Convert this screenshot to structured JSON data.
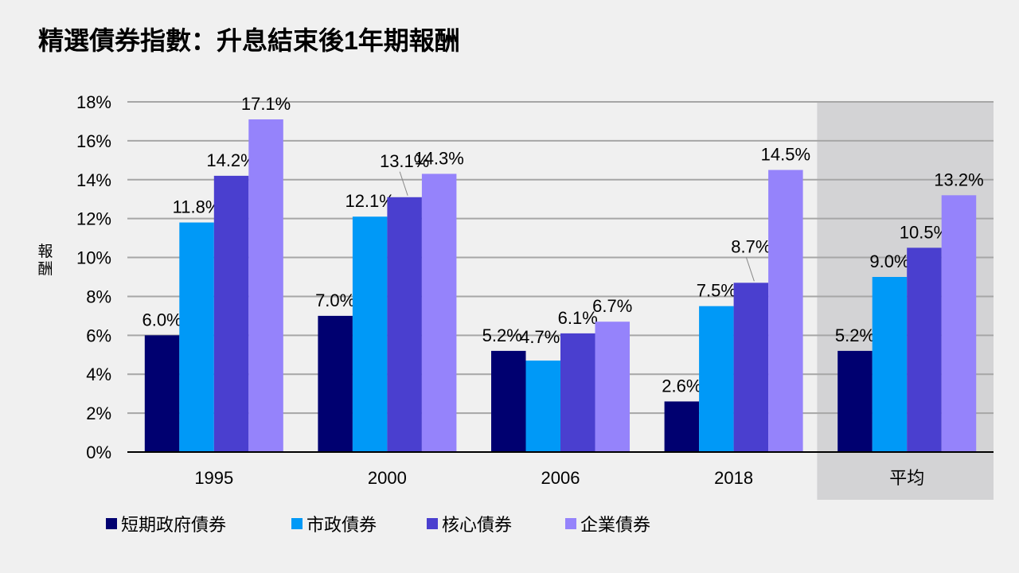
{
  "chart_data": {
    "type": "bar",
    "title": "精選債券指數：升息結束後1年期報酬",
    "ylabel": "報酬",
    "xlabel": "",
    "ylim": [
      0,
      18
    ],
    "yticks": [
      "0%",
      "2%",
      "4%",
      "6%",
      "8%",
      "10%",
      "12%",
      "14%",
      "16%",
      "18%"
    ],
    "grid": true,
    "legend_position": "bottom",
    "categories": [
      "1995",
      "2000",
      "2006",
      "2018",
      "平均"
    ],
    "highlighted_category": "平均",
    "series": [
      {
        "name": "短期政府債券",
        "color": "#000070",
        "values": [
          6.0,
          7.0,
          5.2,
          2.6,
          5.2
        ],
        "labels": [
          "6.0%",
          "7.0%",
          "5.2%",
          "2.6%",
          "5.2%"
        ]
      },
      {
        "name": "市政債券",
        "color": "#0099f7",
        "values": [
          11.8,
          12.1,
          4.7,
          7.5,
          9.0
        ],
        "labels": [
          "11.8%",
          "12.1%",
          "4.7%",
          "7.5%",
          "9.0%"
        ]
      },
      {
        "name": "核心債券",
        "color": "#4a3fcf",
        "values": [
          14.2,
          13.1,
          6.1,
          8.7,
          10.5
        ],
        "labels": [
          "14.2%",
          "13.1%",
          "6.1%",
          "8.7%",
          "10.5%"
        ]
      },
      {
        "name": "企業債券",
        "color": "#9583fb",
        "values": [
          17.1,
          14.3,
          6.7,
          14.5,
          13.2
        ],
        "labels": [
          "17.1%",
          "14.3%",
          "6.7%",
          "14.5%",
          "13.2%"
        ]
      }
    ]
  }
}
